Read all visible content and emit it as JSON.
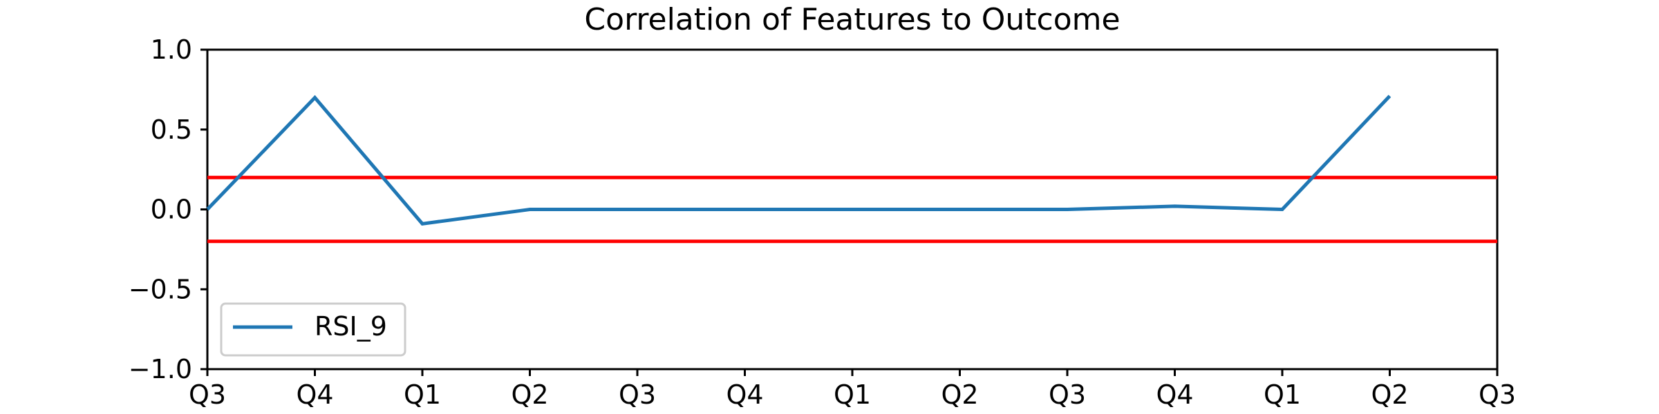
{
  "chart_data": {
    "type": "line",
    "title": "Correlation of Features to Outcome",
    "xlabel": "",
    "ylabel": "",
    "ylim": [
      -1.0,
      1.0
    ],
    "y_ticks": [
      1.0,
      0.5,
      0.0,
      -0.5,
      -1.0
    ],
    "y_tick_labels": [
      "1.0",
      "0.5",
      "0.0",
      "−0.5",
      "−1.0"
    ],
    "x_tick_labels": [
      "Q3",
      "Q4",
      "Q1",
      "Q2",
      "Q3",
      "Q4",
      "Q1",
      "Q2",
      "Q3",
      "Q4",
      "Q1",
      "Q2",
      "Q3"
    ],
    "x": [
      "Q3",
      "Q4",
      "Q1",
      "Q2",
      "Q3",
      "Q4",
      "Q1",
      "Q2",
      "Q3",
      "Q4",
      "Q1",
      "Q2"
    ],
    "grid": false,
    "legend": "lower-left",
    "series": [
      {
        "name": "RSI_9",
        "color": "#1f77b4",
        "values": [
          0.0,
          0.7,
          -0.09,
          0.0,
          0.0,
          0.0,
          0.0,
          0.0,
          0.0,
          0.02,
          0.0,
          0.71
        ]
      }
    ],
    "reference_lines": [
      {
        "y": 0.2,
        "color": "#ff0000"
      },
      {
        "y": -0.2,
        "color": "#ff0000"
      }
    ]
  }
}
